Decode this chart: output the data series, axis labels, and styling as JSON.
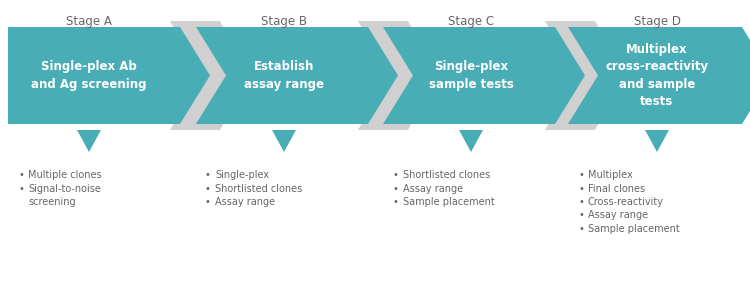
{
  "background_color": "#ffffff",
  "teal_color": "#49adb5",
  "gray_color": "#d0d0d0",
  "text_white": "#ffffff",
  "text_dark": "#666666",
  "stages": [
    "Stage A",
    "Stage B",
    "Stage C",
    "Stage D"
  ],
  "stage_labels": [
    "Single-plex Ab\nand Ag screening",
    "Establish\nassay range",
    "Single-plex\nsample tests",
    "Multiplex\ncross-reactivity\nand sample\ntests"
  ],
  "bullet_columns": [
    [
      "Multiple clones",
      "Signal-to-noise\nscreening"
    ],
    [
      "Single-plex",
      "Shortlisted clones",
      "Assay range"
    ],
    [
      "Shortlisted clones",
      "Assay range",
      "Sample placement"
    ],
    [
      "Multiplex",
      "Final clones",
      "Cross-reactivity",
      "Assay range",
      "Sample placement"
    ]
  ],
  "fig_width": 7.5,
  "fig_height": 2.82,
  "dpi": 100
}
